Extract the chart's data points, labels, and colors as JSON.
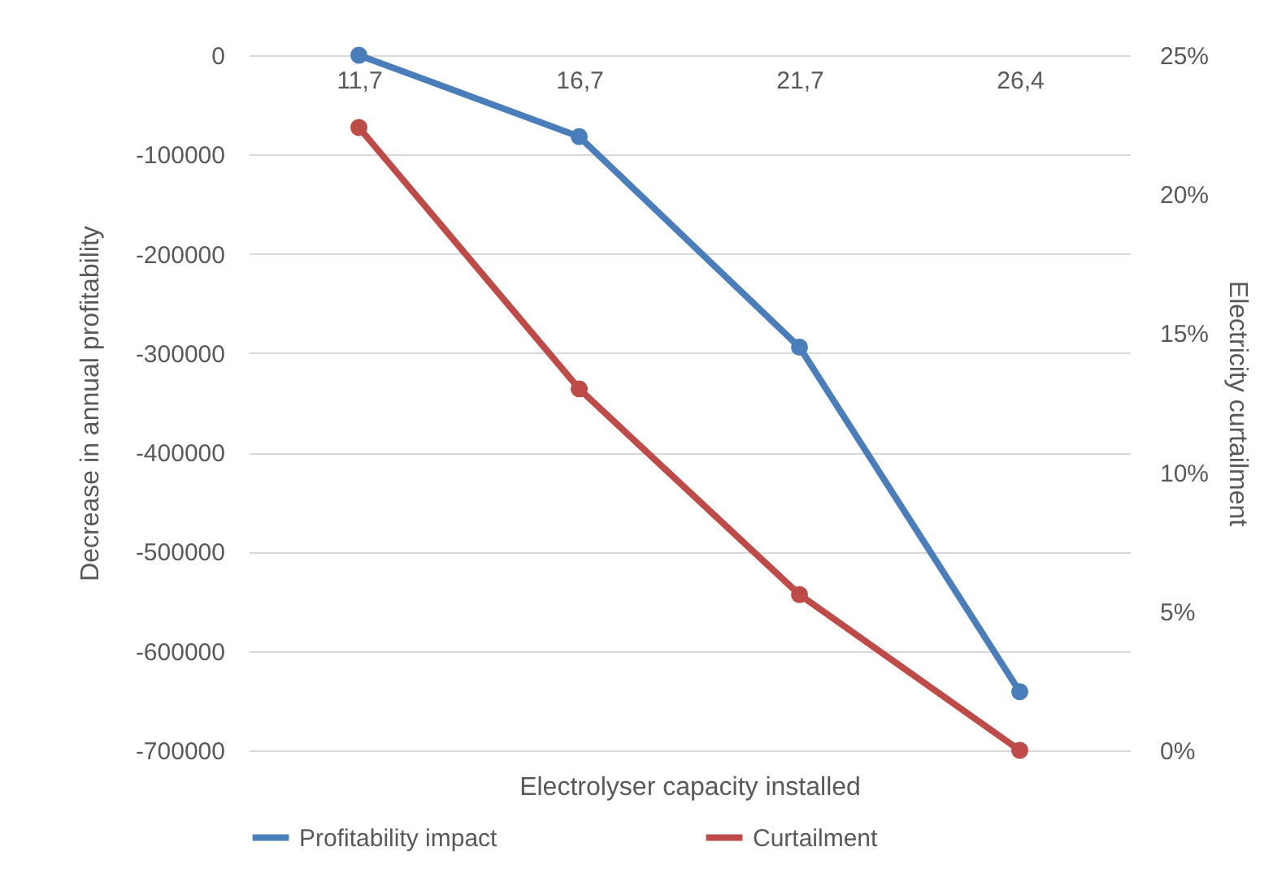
{
  "chart_data": {
    "type": "line",
    "xlabel": "Electrolyser capacity installed",
    "ylabel": "Decrease in annual profitability",
    "y2label": "Electricity curtailment",
    "categories": [
      "11,7",
      "16,7",
      "21,7",
      "26,4"
    ],
    "series": [
      {
        "name": "Profitability impact",
        "color": "#4a7ebb",
        "values": [
          0,
          -82000,
          -294000,
          -641000
        ]
      },
      {
        "name": "Curtailment",
        "color": "#be4b48",
        "axis": "y2",
        "values": [
          22.4,
          13.0,
          5.6,
          0
        ]
      }
    ],
    "ylim": [
      -700000,
      0
    ],
    "yticks": [
      -700000,
      -600000,
      -500000,
      -400000,
      -300000,
      -200000,
      -100000,
      0
    ],
    "y2lim": [
      0,
      25
    ],
    "y2ticks": [
      {
        "value": 0,
        "label": "0%"
      },
      {
        "value": 5,
        "label": "5%"
      },
      {
        "value": 10,
        "label": "10%"
      },
      {
        "value": 15,
        "label": "15%"
      },
      {
        "value": 20,
        "label": "20%"
      },
      {
        "value": 25,
        "label": "25%"
      }
    ],
    "grid": "y",
    "legend": "bottom",
    "marker": "circle",
    "line_style": "solid"
  }
}
